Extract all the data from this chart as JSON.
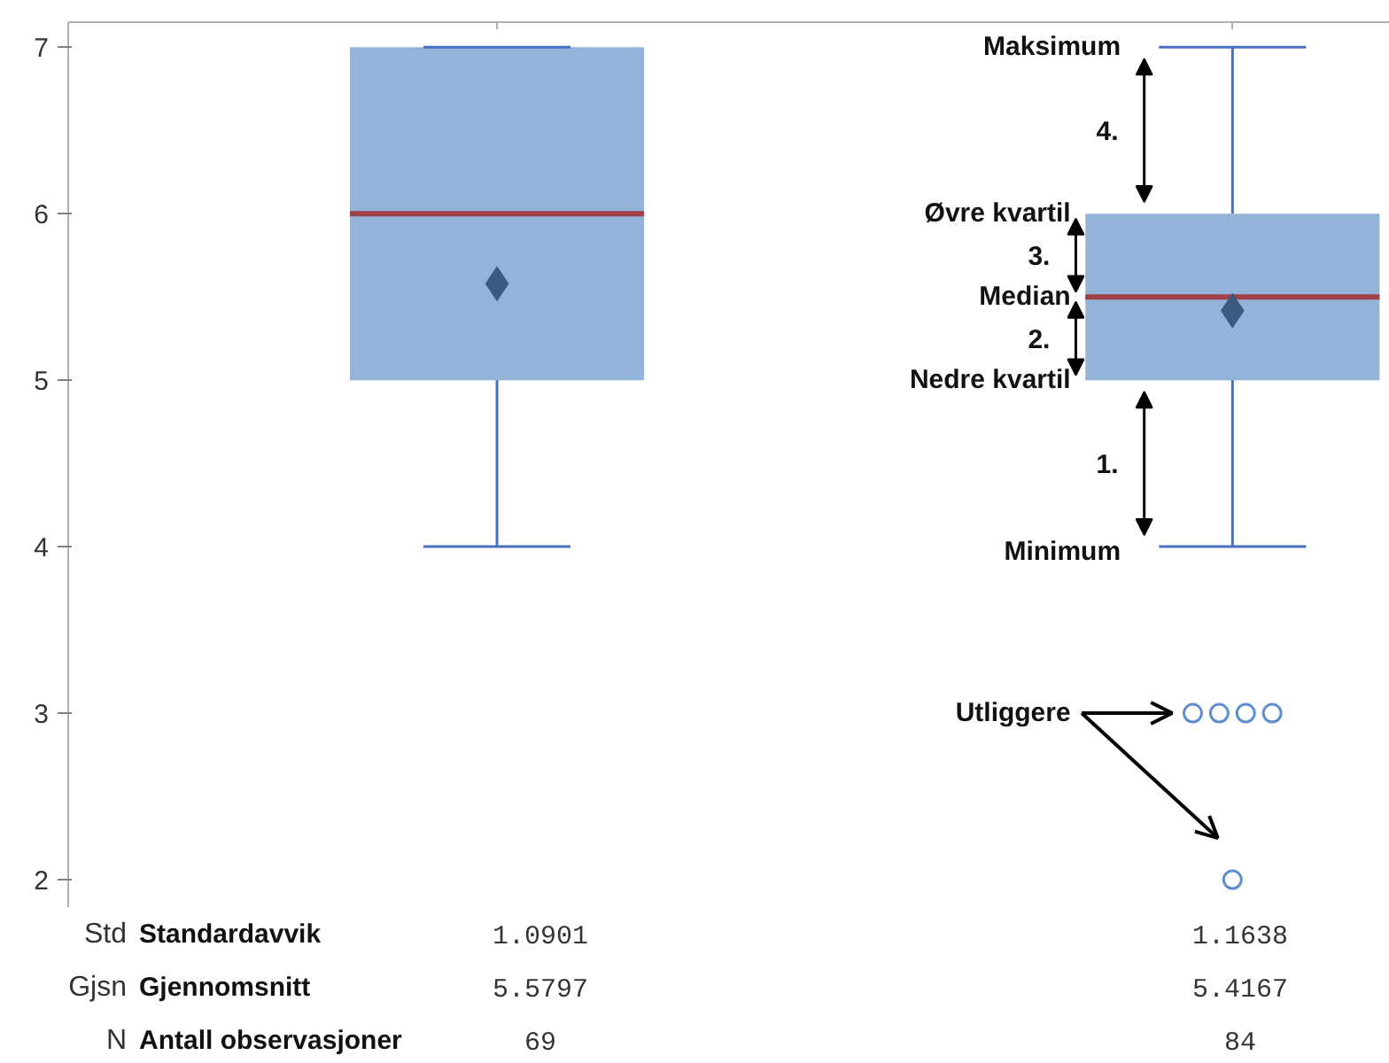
{
  "chart_data": {
    "type": "box",
    "categories": [
      null,
      null
    ],
    "boxes": [
      {
        "low": 4,
        "q1": 5,
        "median": 6,
        "q3": 7,
        "high": 7,
        "mean": 5.5797
      },
      {
        "low": 4,
        "q1": 5,
        "median": 5.5,
        "q3": 6,
        "high": 7,
        "mean": 5.4167,
        "outliers": [
          3,
          3,
          3,
          3,
          2
        ]
      }
    ],
    "ylim": [
      1.83,
      7.15
    ],
    "yticks": [
      2,
      3,
      4,
      5,
      6,
      7
    ],
    "grid": false,
    "annotations": [
      "Std",
      "Standardavvik",
      "1.0901",
      "1.1638",
      "Gjsn",
      "Gjennomsnitt",
      "5.5797",
      "5.4167",
      "N",
      "Antall observasjoner",
      "69",
      "84",
      "Maksimum",
      "4.",
      "Øvre kvartil",
      "3.",
      "Median",
      "2.",
      "Nedre kvartil",
      "1.",
      "Minimum",
      "Utliggere"
    ]
  }
}
